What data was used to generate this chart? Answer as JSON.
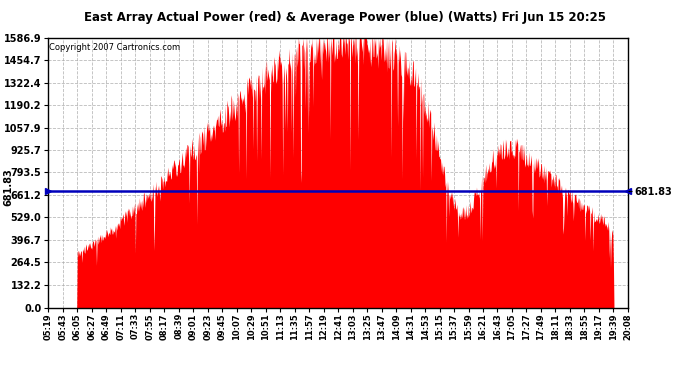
{
  "title": "East Array Actual Power (red) & Average Power (blue) (Watts) Fri Jun 15 20:25",
  "copyright": "Copyright 2007 Cartronics.com",
  "average_power": 681.83,
  "ymax": 1586.9,
  "yticks": [
    0.0,
    132.2,
    264.5,
    396.7,
    529.0,
    661.2,
    793.5,
    925.7,
    1057.9,
    1190.2,
    1322.4,
    1454.7,
    1586.9
  ],
  "fill_color": "#FF0000",
  "line_color": "#0000BB",
  "avg_label": "681.83",
  "xtick_labels": [
    "05:19",
    "05:43",
    "06:05",
    "06:27",
    "06:49",
    "07:11",
    "07:33",
    "07:55",
    "08:17",
    "08:39",
    "09:01",
    "09:23",
    "09:45",
    "10:07",
    "10:29",
    "10:51",
    "11:13",
    "11:35",
    "11:57",
    "12:19",
    "12:41",
    "13:03",
    "13:25",
    "13:47",
    "14:09",
    "14:31",
    "14:53",
    "15:15",
    "15:37",
    "15:59",
    "16:21",
    "16:43",
    "17:05",
    "17:27",
    "17:49",
    "18:11",
    "18:33",
    "18:55",
    "19:17",
    "19:39",
    "20:08"
  ],
  "background_color": "#FFFFFF",
  "plot_bg_color": "#FFFFFF",
  "grid_color": "#AAAAAA",
  "border_color": "#000000"
}
